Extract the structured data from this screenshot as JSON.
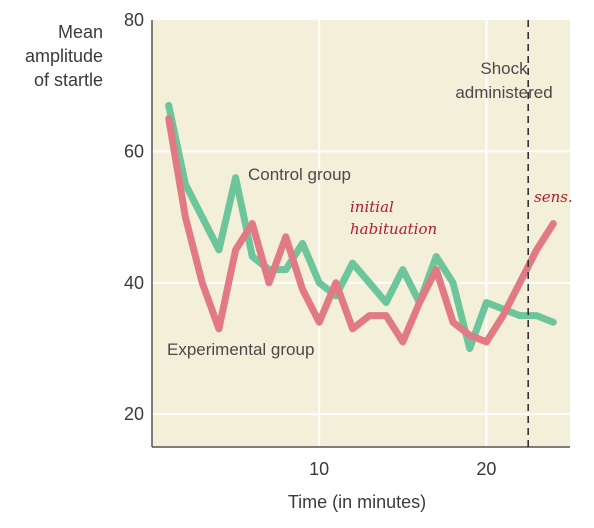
{
  "chart_data": {
    "type": "line",
    "ylabel_lines": [
      "Mean",
      "amplitude",
      "of startle"
    ],
    "xlabel": "Time (in minutes)",
    "xlim": [
      0,
      25
    ],
    "ylim": [
      15,
      80
    ],
    "x_ticks": [
      10,
      20
    ],
    "y_ticks": [
      20,
      40,
      60,
      80
    ],
    "grid": true,
    "background": "#f3efd9",
    "series": [
      {
        "name": "Control group",
        "color": "#6cc59b",
        "points": [
          [
            1,
            67
          ],
          [
            2,
            55
          ],
          [
            3,
            50
          ],
          [
            4,
            45
          ],
          [
            5,
            56
          ],
          [
            6,
            44
          ],
          [
            7,
            42
          ],
          [
            8,
            42
          ],
          [
            9,
            46
          ],
          [
            10,
            40
          ],
          [
            11,
            38
          ],
          [
            12,
            43
          ],
          [
            13,
            40
          ],
          [
            14,
            37
          ],
          [
            15,
            42
          ],
          [
            16,
            37
          ],
          [
            17,
            44
          ],
          [
            18,
            40
          ],
          [
            19,
            30
          ],
          [
            20,
            37
          ],
          [
            21,
            36
          ],
          [
            22,
            35
          ],
          [
            23,
            35
          ],
          [
            24,
            34
          ]
        ]
      },
      {
        "name": "Experimental group",
        "color": "#e27a83",
        "points": [
          [
            1,
            65
          ],
          [
            2,
            50
          ],
          [
            3,
            40
          ],
          [
            4,
            33
          ],
          [
            5,
            45
          ],
          [
            6,
            49
          ],
          [
            7,
            40
          ],
          [
            8,
            47
          ],
          [
            9,
            39
          ],
          [
            10,
            34
          ],
          [
            11,
            40
          ],
          [
            12,
            33
          ],
          [
            13,
            35
          ],
          [
            14,
            35
          ],
          [
            15,
            31
          ],
          [
            16,
            37
          ],
          [
            17,
            42
          ],
          [
            18,
            34
          ],
          [
            19,
            32
          ],
          [
            20,
            31
          ],
          [
            21,
            35
          ],
          [
            22,
            40
          ],
          [
            23,
            45
          ],
          [
            24,
            49
          ]
        ]
      }
    ],
    "shock_line": {
      "x": 22.5,
      "label_lines": [
        "Shock",
        "administered"
      ]
    },
    "annotations": {
      "handwritten_1_lines": [
        "initial",
        "habituation"
      ],
      "handwritten_2": "sens."
    }
  }
}
